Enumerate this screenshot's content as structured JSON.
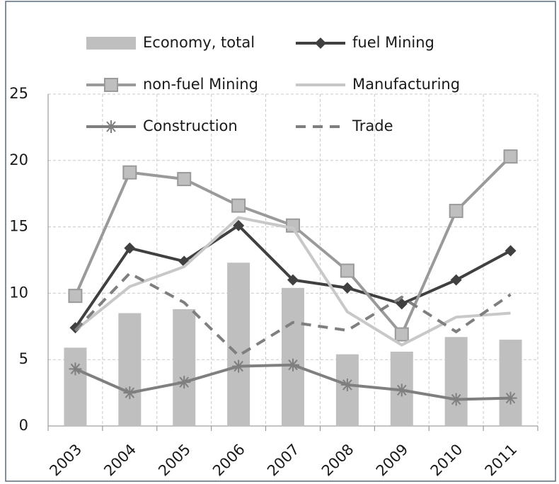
{
  "chart_data": {
    "type": "bar",
    "categories": [
      "2003",
      "2004",
      "2005",
      "2006",
      "2007",
      "2008",
      "2009",
      "2010",
      "2011"
    ],
    "series": [
      {
        "name": "Economy, total",
        "type": "bar",
        "color": "#bfbfbf",
        "values": [
          5.9,
          8.5,
          8.8,
          12.3,
          10.4,
          5.4,
          5.6,
          6.7,
          6.5
        ]
      },
      {
        "name": "fuel Mining",
        "type": "line",
        "color": "#404040",
        "marker": "diamond",
        "values": [
          7.4,
          13.4,
          12.4,
          15.1,
          11.0,
          10.4,
          9.2,
          11.0,
          13.2
        ]
      },
      {
        "name": "non-fuel Mining",
        "type": "line",
        "color": "#9a9a9a",
        "marker": "square",
        "values": [
          9.8,
          19.1,
          18.6,
          16.6,
          15.1,
          11.7,
          6.9,
          16.2,
          20.3
        ]
      },
      {
        "name": "Manufacturing",
        "type": "line",
        "color": "#c8c8c8",
        "marker": "none",
        "values": [
          7.2,
          10.5,
          12.0,
          15.7,
          14.9,
          8.6,
          6.1,
          8.2,
          8.5
        ]
      },
      {
        "name": "Construction",
        "type": "line",
        "color": "#7f7f7f",
        "marker": "asterisk",
        "values": [
          4.3,
          2.5,
          3.3,
          4.5,
          4.6,
          3.1,
          2.7,
          2.0,
          2.1
        ]
      },
      {
        "name": "Trade",
        "type": "line",
        "color": "#7f7f7f",
        "marker": "none",
        "dashed": true,
        "values": [
          7.2,
          11.5,
          9.3,
          5.3,
          7.8,
          7.2,
          9.7,
          7.1,
          9.9
        ]
      }
    ],
    "ylim": [
      0,
      25
    ],
    "yticks": [
      0,
      5,
      10,
      15,
      20,
      25
    ],
    "grid": true
  }
}
